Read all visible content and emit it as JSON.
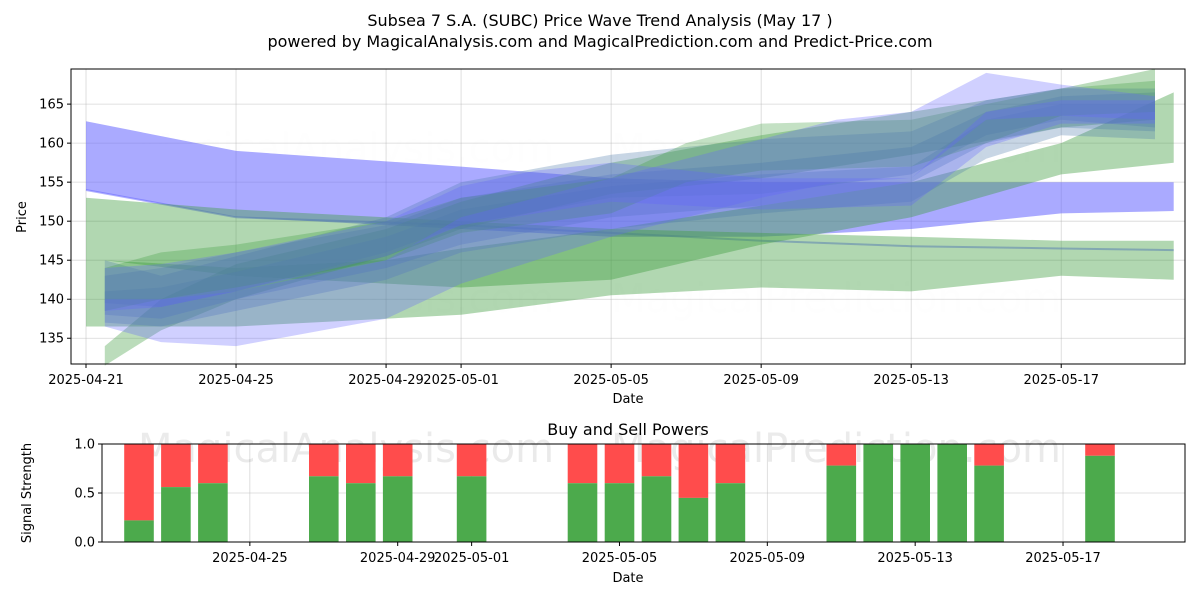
{
  "title_line1": "Subsea 7 S.A. (SUBC) Price Wave Trend Analysis (May 17 )",
  "title_line2": "powered by MagicalAnalysis.com and MagicalPrediction.com and Predict-Price.com",
  "watermarks": [
    "MagicalAnalysis.com",
    "MagicalPrediction.com"
  ],
  "chart_data": [
    {
      "type": "area",
      "title": "",
      "xlabel": "Date",
      "ylabel": "Price",
      "x_range_days": [
        -0.4,
        29.3
      ],
      "ylim": [
        131.7,
        169.5
      ],
      "yticks": [
        135,
        140,
        145,
        150,
        155,
        160,
        165
      ],
      "xticks": [
        {
          "day": 0,
          "label": "2025-04-21"
        },
        {
          "day": 4,
          "label": "2025-04-25"
        },
        {
          "day": 8,
          "label": "2025-04-29"
        },
        {
          "day": 10,
          "label": "2025-05-01"
        },
        {
          "day": 14,
          "label": "2025-05-05"
        },
        {
          "day": 18,
          "label": "2025-05-09"
        },
        {
          "day": 22,
          "label": "2025-05-13"
        },
        {
          "day": 26,
          "label": "2025-05-17"
        }
      ],
      "grid": true,
      "series": [
        {
          "name": "blue-wave-long",
          "color": "#6464ff",
          "opacity": 0.55,
          "x": [
            0,
            4,
            10,
            14,
            18,
            22,
            26,
            29
          ],
          "upper": [
            162.8,
            159,
            157,
            155.5,
            155,
            155,
            155,
            155
          ],
          "lower": [
            154,
            150.5,
            149,
            148,
            148,
            149,
            151,
            151.3
          ]
        },
        {
          "name": "blue-wave-mid",
          "color": "#6464ff",
          "opacity": 0.5,
          "x": [
            0,
            4,
            10,
            14,
            18,
            22,
            26,
            29
          ],
          "upper": [
            154,
            150.5,
            149.5,
            148.5,
            147.5,
            146.8,
            146.5,
            146.3
          ],
          "lower": [
            154,
            150.5,
            149.5,
            148.5,
            147.5,
            146.8,
            146.5,
            146.3
          ]
        },
        {
          "name": "green-wave-long",
          "color": "#3c9c3c",
          "opacity": 0.4,
          "x": [
            0,
            4,
            10,
            14,
            18,
            22,
            26,
            29
          ],
          "upper": [
            153,
            151.5,
            150,
            149,
            148.5,
            148,
            147.5,
            147.5
          ],
          "lower": [
            136.5,
            136.5,
            138,
            140.5,
            141.5,
            141,
            143,
            142.5
          ]
        },
        {
          "name": "green-wave-rising",
          "color": "#3c9c3c",
          "opacity": 0.4,
          "x": [
            0.5,
            4,
            8,
            10,
            14,
            18,
            22,
            26,
            29
          ],
          "upper": [
            145,
            144,
            145,
            146.5,
            149,
            152,
            155,
            160,
            166.5
          ],
          "lower": [
            145,
            143,
            142,
            141.5,
            142.5,
            147,
            150.5,
            156,
            157.5
          ]
        },
        {
          "name": "green-wave-early",
          "color": "#3c9c3c",
          "opacity": 0.35,
          "x": [
            0.5,
            2,
            4,
            8,
            10,
            14,
            18,
            22,
            26,
            28.5
          ],
          "upper": [
            134,
            140,
            144.5,
            149,
            152.5,
            157.5,
            161,
            164,
            167,
            169.5
          ],
          "lower": [
            131.5,
            136,
            140,
            145.5,
            149,
            153.5,
            155.5,
            158.5,
            162,
            163
          ]
        },
        {
          "name": "steel-wave-a",
          "color": "#4a78a8",
          "opacity": 0.3,
          "x": [
            0.5,
            2,
            4,
            8,
            10,
            14,
            18,
            22,
            24,
            26,
            28.5
          ],
          "upper": [
            143,
            144,
            146,
            149.5,
            153,
            156,
            157.5,
            159.5,
            164,
            166,
            166.5
          ],
          "lower": [
            138,
            137.5,
            140,
            144,
            147,
            150.5,
            152,
            155,
            160,
            162,
            161.5
          ]
        },
        {
          "name": "steel-wave-b",
          "color": "#4a78a8",
          "opacity": 0.3,
          "x": [
            0.5,
            2,
            4,
            8,
            10,
            14,
            18,
            22,
            24,
            26,
            28.5
          ],
          "upper": [
            145,
            143,
            145.5,
            150.5,
            155,
            158.5,
            160.5,
            161.5,
            165.5,
            167,
            167
          ],
          "lower": [
            139.5,
            139,
            141,
            146,
            149.5,
            153,
            153.5,
            156,
            161,
            163,
            162
          ]
        },
        {
          "name": "steel-wave-c",
          "color": "#4a78a8",
          "opacity": 0.3,
          "x": [
            0.5,
            2,
            4,
            8,
            10,
            14,
            18,
            22,
            24,
            26,
            28.5
          ],
          "upper": [
            141,
            141.5,
            143.5,
            148,
            151.5,
            154.5,
            156,
            157,
            163,
            165,
            165
          ],
          "lower": [
            137,
            136.5,
            138.5,
            142.5,
            146,
            149,
            151,
            152.5,
            158,
            161,
            160.5
          ]
        },
        {
          "name": "green-wave-d",
          "color": "#3c9c3c",
          "opacity": 0.3,
          "x": [
            0.5,
            2,
            4,
            8,
            10,
            14,
            16,
            18,
            22,
            24,
            26,
            28.5
          ],
          "upper": [
            144,
            146,
            147,
            150,
            153,
            155.5,
            160,
            162.5,
            163,
            165,
            167,
            168
          ],
          "lower": [
            138.5,
            140,
            141.5,
            145,
            148.5,
            151,
            155,
            156.5,
            157,
            160,
            163.5,
            164
          ]
        },
        {
          "name": "blue-wave-e",
          "color": "#6464ff",
          "opacity": 0.3,
          "x": [
            0.5,
            2,
            4,
            8,
            10,
            14,
            18,
            20,
            22,
            24,
            26,
            28.5
          ],
          "upper": [
            140,
            140,
            141,
            145,
            150.5,
            155.5,
            160.5,
            163,
            164,
            169,
            167.5,
            166
          ],
          "lower": [
            136.5,
            134.5,
            134,
            137.5,
            142,
            148,
            153,
            155,
            155.5,
            163,
            163.5,
            163
          ]
        },
        {
          "name": "blue-wave-f",
          "color": "#6464ff",
          "opacity": 0.3,
          "x": [
            0.5,
            2,
            4,
            8,
            10,
            12,
            14,
            18,
            22,
            24,
            26,
            28.5
          ],
          "upper": [
            144,
            144.5,
            146,
            150,
            154.5,
            156.5,
            157.5,
            155.5,
            155.5,
            164,
            165.5,
            165.5
          ],
          "lower": [
            138.5,
            139,
            141,
            145.5,
            149.5,
            151,
            152.5,
            151.5,
            152,
            159.5,
            162.5,
            162.5
          ]
        }
      ]
    },
    {
      "type": "bar",
      "title": "Buy and Sell Powers",
      "xlabel": "Date",
      "ylabel": "Signal Strength",
      "ylim": [
        0,
        1
      ],
      "yticks": [
        "0.0",
        "0.5",
        "1.0"
      ],
      "xticks": [
        {
          "day": 4,
          "label": "2025-04-25"
        },
        {
          "day": 8,
          "label": "2025-04-29"
        },
        {
          "day": 10,
          "label": "2025-05-01"
        },
        {
          "day": 14,
          "label": "2025-05-05"
        },
        {
          "day": 18,
          "label": "2025-05-09"
        },
        {
          "day": 22,
          "label": "2025-05-13"
        },
        {
          "day": 26,
          "label": "2025-05-17"
        }
      ],
      "buy_color": "#4caa4c",
      "sell_color": "#ff4c4c",
      "bars": [
        {
          "date": "2025-04-22",
          "day": 1,
          "buy": 0.22
        },
        {
          "date": "2025-04-23",
          "day": 2,
          "buy": 0.56
        },
        {
          "date": "2025-04-24",
          "day": 3,
          "buy": 0.6
        },
        {
          "date": "2025-04-27",
          "day": 6,
          "buy": 0.67
        },
        {
          "date": "2025-04-28",
          "day": 7,
          "buy": 0.6
        },
        {
          "date": "2025-04-29",
          "day": 8,
          "buy": 0.67
        },
        {
          "date": "2025-05-01",
          "day": 10,
          "buy": 0.67
        },
        {
          "date": "2025-05-04",
          "day": 13,
          "buy": 0.6
        },
        {
          "date": "2025-05-05",
          "day": 14,
          "buy": 0.6
        },
        {
          "date": "2025-05-06",
          "day": 15,
          "buy": 0.67
        },
        {
          "date": "2025-05-07",
          "day": 16,
          "buy": 0.45
        },
        {
          "date": "2025-05-08",
          "day": 17,
          "buy": 0.6
        },
        {
          "date": "2025-05-11",
          "day": 20,
          "buy": 0.78
        },
        {
          "date": "2025-05-12",
          "day": 21,
          "buy": 1.0
        },
        {
          "date": "2025-05-13",
          "day": 22,
          "buy": 1.0
        },
        {
          "date": "2025-05-14",
          "day": 23,
          "buy": 1.0
        },
        {
          "date": "2025-05-15",
          "day": 24,
          "buy": 0.78
        },
        {
          "date": "2025-05-18",
          "day": 27,
          "buy": 0.88
        }
      ]
    }
  ]
}
